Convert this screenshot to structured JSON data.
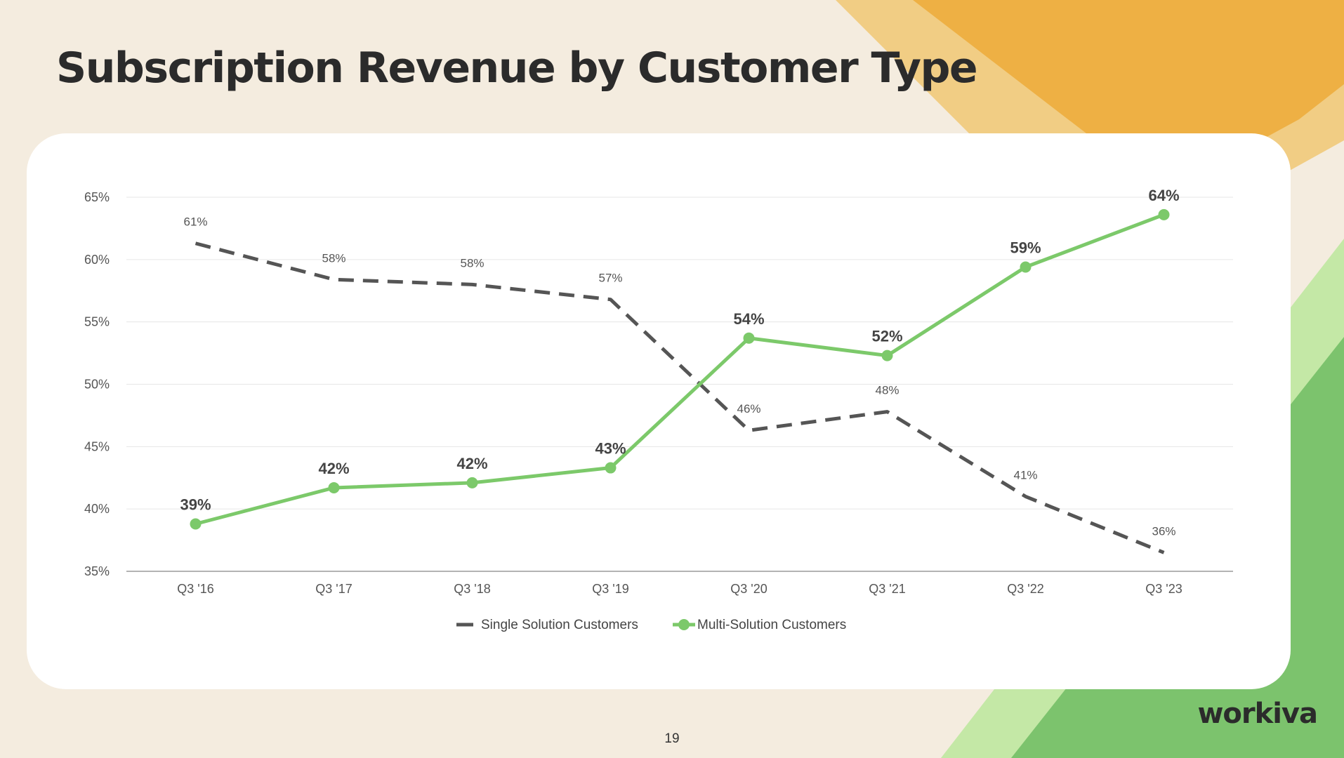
{
  "title": "Subscription Revenue by Customer Type",
  "page_number": "19",
  "brand": "workiva",
  "colors": {
    "background": "#f4ecdf",
    "accent_orange": "#eeb044",
    "accent_light_orange": "#f1cd84",
    "accent_green": "#7cc36d",
    "accent_light_green": "#c4e8a6",
    "single_line": "#555555",
    "multi_line": "#7cc96a",
    "text": "#2b2b2b"
  },
  "chart_data": {
    "type": "line",
    "categories": [
      "Q3 '16",
      "Q3 '17",
      "Q3 '18",
      "Q3 '19",
      "Q3 '20",
      "Q3 '21",
      "Q3 '22",
      "Q3 '23"
    ],
    "ylim": [
      35,
      65
    ],
    "yticks": [
      35,
      40,
      45,
      50,
      55,
      60,
      65
    ],
    "ytick_labels": [
      "35%",
      "40%",
      "45%",
      "50%",
      "55%",
      "60%",
      "65%"
    ],
    "grid": true,
    "legend_position": "bottom",
    "series": [
      {
        "name": "Single Solution Customers",
        "values": [
          61.3,
          58.4,
          58.0,
          56.8,
          46.3,
          47.8,
          41.0,
          36.5
        ],
        "labels": [
          "61%",
          "58%",
          "58%",
          "57%",
          "46%",
          "48%",
          "41%",
          "36%"
        ],
        "style": "dashed",
        "color": "#555555"
      },
      {
        "name": "Multi-Solution Customers",
        "values": [
          38.8,
          41.7,
          42.1,
          43.3,
          53.7,
          52.3,
          59.4,
          63.6
        ],
        "labels": [
          "39%",
          "42%",
          "42%",
          "43%",
          "54%",
          "52%",
          "59%",
          "64%"
        ],
        "style": "solid",
        "color": "#7cc96a"
      }
    ]
  }
}
